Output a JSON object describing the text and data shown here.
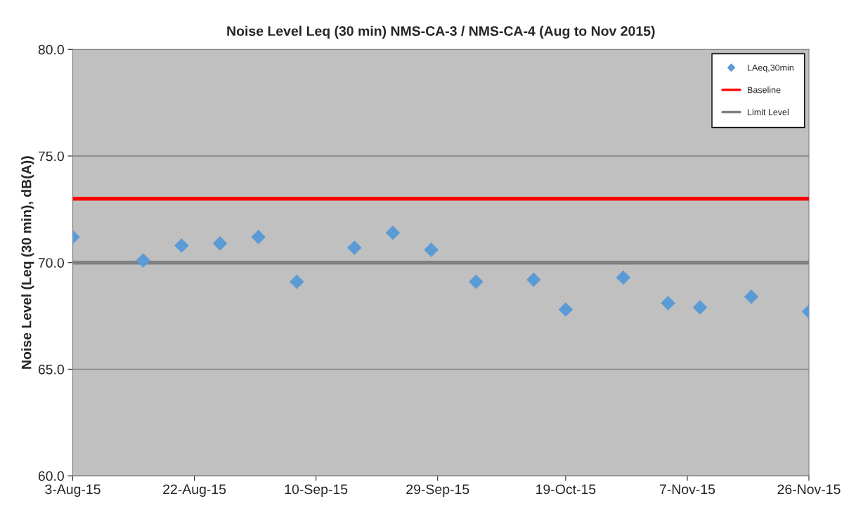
{
  "chart_data": {
    "type": "scatter",
    "title": "Noise Level Leq (30 min) NMS-CA-3 / NMS-CA-4 (Aug to Nov 2015)",
    "ylabel": "Noise Level (Leq (30 min), dB(A))",
    "x": [
      "2015-08-03",
      "2015-08-14",
      "2015-08-20",
      "2015-08-26",
      "2015-09-01",
      "2015-09-07",
      "2015-09-16",
      "2015-09-22",
      "2015-09-28",
      "2015-10-05",
      "2015-10-14",
      "2015-10-19",
      "2015-10-28",
      "2015-11-04",
      "2015-11-09",
      "2015-11-17",
      "2015-11-26"
    ],
    "series": [
      {
        "name": "LAeq,30min",
        "color": "#5b9bd5",
        "values": [
          71.2,
          70.1,
          70.8,
          70.9,
          71.2,
          69.1,
          70.7,
          71.4,
          70.6,
          69.1,
          69.2,
          67.8,
          69.3,
          68.1,
          67.9,
          68.4,
          67.7
        ]
      }
    ],
    "ref_lines": [
      {
        "axis": "y",
        "value": 73.0,
        "label": "Baseline",
        "color": "#ff0000"
      },
      {
        "axis": "y",
        "value": 70.0,
        "label": "Limit Level",
        "color": "#808080"
      }
    ],
    "xlim": [
      "2015-08-03",
      "2015-11-26"
    ],
    "xticks": [
      {
        "value": "2015-08-03",
        "label": "3-Aug-15"
      },
      {
        "value": "2015-08-22",
        "label": "22-Aug-15"
      },
      {
        "value": "2015-09-10",
        "label": "10-Sep-15"
      },
      {
        "value": "2015-09-29",
        "label": "29-Sep-15"
      },
      {
        "value": "2015-10-19",
        "label": "19-Oct-15"
      },
      {
        "value": "2015-11-07",
        "label": "7-Nov-15"
      },
      {
        "value": "2015-11-26",
        "label": "26-Nov-15"
      }
    ],
    "ylim": [
      60,
      80
    ],
    "yticks": [
      {
        "value": 60,
        "label": "60.0"
      },
      {
        "value": 65,
        "label": "65.0"
      },
      {
        "value": 70,
        "label": "70.0"
      },
      {
        "value": 75,
        "label": "75.0"
      },
      {
        "value": 80,
        "label": "80.0"
      }
    ],
    "grid": "y",
    "legend": "top right",
    "marker": "diamond"
  }
}
